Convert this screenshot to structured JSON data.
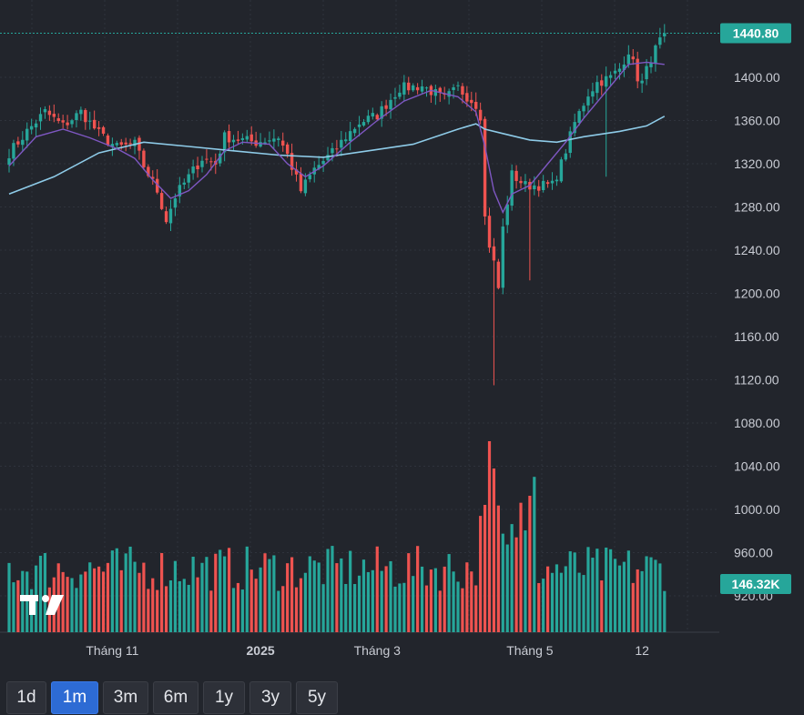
{
  "chart_data": {
    "type": "candlestick",
    "title": "",
    "y_axis": {
      "range": [
        900,
        1460
      ],
      "ticks": [
        920,
        960,
        1000,
        1040,
        1080,
        1120,
        1160,
        1200,
        1240,
        1280,
        1320,
        1360,
        1400
      ]
    },
    "tick_labels": [
      "920.00",
      "960.00",
      "1000.00",
      "1040.00",
      "1080.00",
      "1120.00",
      "1160.00",
      "1200.00",
      "1240.00",
      "1280.00",
      "1320.00",
      "1360.00",
      "1400.00"
    ],
    "x_labels": [
      {
        "text": "Tháng 11",
        "bold": false,
        "index": 23
      },
      {
        "text": "2025",
        "bold": true,
        "index": 56
      },
      {
        "text": "Tháng 3",
        "bold": false,
        "index": 82
      },
      {
        "text": "Tháng 5",
        "bold": false,
        "index": 116
      },
      {
        "text": "12",
        "bold": false,
        "index": 141
      }
    ],
    "last_price_label": "1440.80",
    "last_price": 1440.8,
    "last_volume_label": "146.32K",
    "grid": true,
    "colors": {
      "up": "#26a69a",
      "down": "#ef5350",
      "ma_fast": "#7e57c2",
      "ma_slow": "#8ecbe8",
      "price_tag": "#26a69a",
      "background": "#22252c",
      "grid": "#2f333c"
    },
    "close_path": [
      [
        0,
        1330
      ],
      [
        4,
        1350
      ],
      [
        8,
        1368
      ],
      [
        12,
        1355
      ],
      [
        16,
        1368
      ],
      [
        20,
        1348
      ],
      [
        24,
        1335
      ],
      [
        28,
        1338
      ],
      [
        30,
        1318
      ],
      [
        33,
        1295
      ],
      [
        35,
        1268
      ],
      [
        37,
        1290
      ],
      [
        40,
        1308
      ],
      [
        43,
        1325
      ],
      [
        46,
        1320
      ],
      [
        48,
        1345
      ],
      [
        52,
        1342
      ],
      [
        55,
        1340
      ],
      [
        60,
        1345
      ],
      [
        62,
        1328
      ],
      [
        65,
        1295
      ],
      [
        68,
        1315
      ],
      [
        72,
        1330
      ],
      [
        75,
        1345
      ],
      [
        78,
        1358
      ],
      [
        82,
        1365
      ],
      [
        87,
        1390
      ],
      [
        92,
        1392
      ],
      [
        97,
        1380
      ],
      [
        100,
        1390
      ],
      [
        104,
        1375
      ],
      [
        105,
        1365
      ],
      [
        106,
        1270
      ],
      [
        107,
        1245
      ],
      [
        108,
        1228
      ],
      [
        109,
        1205
      ],
      [
        110,
        1260
      ],
      [
        112,
        1310
      ],
      [
        115,
        1300
      ],
      [
        118,
        1300
      ],
      [
        121,
        1300
      ],
      [
        123,
        1320
      ],
      [
        126,
        1358
      ],
      [
        129,
        1385
      ],
      [
        131,
        1395
      ],
      [
        134,
        1400
      ],
      [
        136,
        1408
      ],
      [
        138,
        1425
      ],
      [
        140,
        1400
      ],
      [
        141,
        1395
      ],
      [
        143,
        1418
      ],
      [
        146,
        1441
      ]
    ],
    "ma_fast_path": [
      [
        0,
        1318
      ],
      [
        6,
        1345
      ],
      [
        12,
        1352
      ],
      [
        18,
        1344
      ],
      [
        24,
        1334
      ],
      [
        28,
        1325
      ],
      [
        32,
        1305
      ],
      [
        36,
        1288
      ],
      [
        40,
        1295
      ],
      [
        44,
        1310
      ],
      [
        48,
        1332
      ],
      [
        52,
        1340
      ],
      [
        58,
        1338
      ],
      [
        62,
        1320
      ],
      [
        66,
        1308
      ],
      [
        70,
        1318
      ],
      [
        76,
        1340
      ],
      [
        82,
        1360
      ],
      [
        88,
        1378
      ],
      [
        94,
        1388
      ],
      [
        100,
        1382
      ],
      [
        104,
        1368
      ],
      [
        106,
        1336
      ],
      [
        108,
        1295
      ],
      [
        110,
        1275
      ],
      [
        112,
        1292
      ],
      [
        116,
        1300
      ],
      [
        120,
        1320
      ],
      [
        124,
        1340
      ],
      [
        128,
        1362
      ],
      [
        134,
        1392
      ],
      [
        138,
        1412
      ],
      [
        142,
        1414
      ],
      [
        146,
        1412
      ]
    ],
    "ma_slow_path": [
      [
        0,
        1292
      ],
      [
        10,
        1308
      ],
      [
        20,
        1330
      ],
      [
        30,
        1340
      ],
      [
        40,
        1336
      ],
      [
        50,
        1332
      ],
      [
        60,
        1328
      ],
      [
        70,
        1326
      ],
      [
        80,
        1332
      ],
      [
        90,
        1338
      ],
      [
        100,
        1352
      ],
      [
        104,
        1357
      ],
      [
        106,
        1352
      ],
      [
        110,
        1348
      ],
      [
        116,
        1342
      ],
      [
        122,
        1340
      ],
      [
        128,
        1345
      ],
      [
        136,
        1350
      ],
      [
        142,
        1355
      ],
      [
        146,
        1364
      ]
    ]
  },
  "timeframes": [
    {
      "label": "1d",
      "active": false
    },
    {
      "label": "1m",
      "active": true
    },
    {
      "label": "3m",
      "active": false
    },
    {
      "label": "6m",
      "active": false
    },
    {
      "label": "1y",
      "active": false
    },
    {
      "label": "3y",
      "active": false
    },
    {
      "label": "5y",
      "active": false
    }
  ]
}
